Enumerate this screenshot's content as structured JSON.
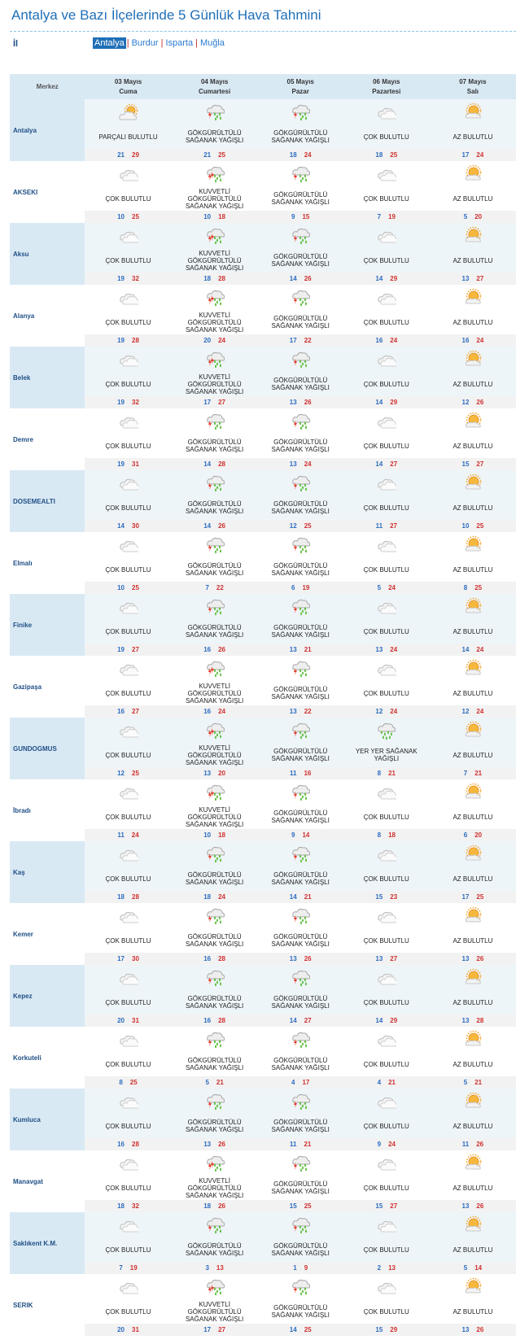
{
  "page": {
    "title": "Antalya ve Bazı İlçelerinde 5 Günlük Hava Tahmini",
    "il_label": "İl",
    "provinces": [
      "Antalya",
      "Burdur",
      "Isparta",
      "Muğla"
    ],
    "selected_province": "Antalya",
    "separator": "|"
  },
  "table": {
    "merkez_header": "Merkez",
    "days": [
      {
        "date": "03 Mayıs",
        "weekday": "Cuma"
      },
      {
        "date": "04 Mayıs",
        "weekday": "Cumartesi"
      },
      {
        "date": "05 Mayıs",
        "weekday": "Pazar"
      },
      {
        "date": "06 Mayıs",
        "weekday": "Pazartesi"
      },
      {
        "date": "07 Mayıs",
        "weekday": "Salı"
      }
    ]
  },
  "conditions": {
    "PB": {
      "label": "PARÇALI BULUTLU",
      "icon": "partly-cloudy-icon"
    },
    "CB": {
      "label": "ÇOK BULUTLU",
      "icon": "cloudy-icon"
    },
    "AB": {
      "label": "AZ BULUTLU",
      "icon": "mostly-sunny-icon"
    },
    "GSY": {
      "label": "GÖKGÜRÜLTÜLÜ SAĞANAK YAĞIŞLI",
      "icon": "thunderstorm-icon"
    },
    "KGSY": {
      "label": "KUVVETLİ GÖKGÜRÜLTÜLÜ SAĞANAK YAĞIŞLI",
      "icon": "heavy-thunderstorm-icon"
    },
    "YYSY": {
      "label": "YER YER SAĞANAK YAĞIŞLI",
      "icon": "rain-shower-icon"
    }
  },
  "cities": [
    {
      "name": "Antalya",
      "days": [
        {
          "c": "PB",
          "min": 21,
          "max": 29
        },
        {
          "c": "GSY",
          "min": 21,
          "max": 25
        },
        {
          "c": "GSY",
          "min": 18,
          "max": 24
        },
        {
          "c": "CB",
          "min": 18,
          "max": 25
        },
        {
          "c": "AB",
          "min": 17,
          "max": 24
        }
      ]
    },
    {
      "name": "AKSEKI",
      "days": [
        {
          "c": "CB",
          "min": 10,
          "max": 25
        },
        {
          "c": "KGSY",
          "min": 10,
          "max": 18
        },
        {
          "c": "GSY",
          "min": 9,
          "max": 15
        },
        {
          "c": "CB",
          "min": 7,
          "max": 19
        },
        {
          "c": "AB",
          "min": 5,
          "max": 20
        }
      ]
    },
    {
      "name": "Aksu",
      "days": [
        {
          "c": "CB",
          "min": 19,
          "max": 32
        },
        {
          "c": "KGSY",
          "min": 18,
          "max": 28
        },
        {
          "c": "GSY",
          "min": 14,
          "max": 26
        },
        {
          "c": "CB",
          "min": 14,
          "max": 29
        },
        {
          "c": "AB",
          "min": 13,
          "max": 27
        }
      ]
    },
    {
      "name": "Alanya",
      "days": [
        {
          "c": "CB",
          "min": 19,
          "max": 28
        },
        {
          "c": "KGSY",
          "min": 20,
          "max": 24
        },
        {
          "c": "GSY",
          "min": 17,
          "max": 22
        },
        {
          "c": "CB",
          "min": 16,
          "max": 24
        },
        {
          "c": "AB",
          "min": 16,
          "max": 24
        }
      ]
    },
    {
      "name": "Belek",
      "days": [
        {
          "c": "CB",
          "min": 19,
          "max": 32
        },
        {
          "c": "KGSY",
          "min": 17,
          "max": 27
        },
        {
          "c": "GSY",
          "min": 13,
          "max": 26
        },
        {
          "c": "CB",
          "min": 14,
          "max": 29
        },
        {
          "c": "AB",
          "min": 12,
          "max": 26
        }
      ]
    },
    {
      "name": "Demre",
      "days": [
        {
          "c": "CB",
          "min": 19,
          "max": 31
        },
        {
          "c": "GSY",
          "min": 14,
          "max": 28
        },
        {
          "c": "GSY",
          "min": 13,
          "max": 24
        },
        {
          "c": "CB",
          "min": 14,
          "max": 27
        },
        {
          "c": "AB",
          "min": 15,
          "max": 27
        }
      ]
    },
    {
      "name": "DOSEMEALTI",
      "days": [
        {
          "c": "CB",
          "min": 14,
          "max": 30
        },
        {
          "c": "GSY",
          "min": 14,
          "max": 26
        },
        {
          "c": "GSY",
          "min": 12,
          "max": 25
        },
        {
          "c": "CB",
          "min": 11,
          "max": 27
        },
        {
          "c": "AB",
          "min": 10,
          "max": 25
        }
      ]
    },
    {
      "name": "Elmalı",
      "days": [
        {
          "c": "CB",
          "min": 10,
          "max": 25
        },
        {
          "c": "GSY",
          "min": 7,
          "max": 22
        },
        {
          "c": "GSY",
          "min": 6,
          "max": 19
        },
        {
          "c": "CB",
          "min": 5,
          "max": 24
        },
        {
          "c": "AB",
          "min": 8,
          "max": 25
        }
      ]
    },
    {
      "name": "Finike",
      "days": [
        {
          "c": "CB",
          "min": 19,
          "max": 27
        },
        {
          "c": "GSY",
          "min": 16,
          "max": 26
        },
        {
          "c": "GSY",
          "min": 13,
          "max": 21
        },
        {
          "c": "CB",
          "min": 13,
          "max": 24
        },
        {
          "c": "AB",
          "min": 14,
          "max": 24
        }
      ]
    },
    {
      "name": "Gazipaşa",
      "days": [
        {
          "c": "CB",
          "min": 16,
          "max": 27
        },
        {
          "c": "KGSY",
          "min": 16,
          "max": 24
        },
        {
          "c": "GSY",
          "min": 13,
          "max": 22
        },
        {
          "c": "CB",
          "min": 12,
          "max": 24
        },
        {
          "c": "AB",
          "min": 12,
          "max": 24
        }
      ]
    },
    {
      "name": "GUNDOGMUS",
      "days": [
        {
          "c": "CB",
          "min": 12,
          "max": 25
        },
        {
          "c": "KGSY",
          "min": 13,
          "max": 20
        },
        {
          "c": "GSY",
          "min": 11,
          "max": 16
        },
        {
          "c": "YYSY",
          "min": 8,
          "max": 21
        },
        {
          "c": "AB",
          "min": 7,
          "max": 21
        }
      ]
    },
    {
      "name": "İbradı",
      "days": [
        {
          "c": "CB",
          "min": 11,
          "max": 24
        },
        {
          "c": "KGSY",
          "min": 10,
          "max": 18
        },
        {
          "c": "GSY",
          "min": 9,
          "max": 14
        },
        {
          "c": "CB",
          "min": 8,
          "max": 18
        },
        {
          "c": "AB",
          "min": 6,
          "max": 20
        }
      ]
    },
    {
      "name": "Kaş",
      "days": [
        {
          "c": "CB",
          "min": 18,
          "max": 28
        },
        {
          "c": "GSY",
          "min": 18,
          "max": 24
        },
        {
          "c": "GSY",
          "min": 14,
          "max": 21
        },
        {
          "c": "CB",
          "min": 15,
          "max": 23
        },
        {
          "c": "AB",
          "min": 17,
          "max": 25
        }
      ]
    },
    {
      "name": "Kemer",
      "days": [
        {
          "c": "CB",
          "min": 17,
          "max": 30
        },
        {
          "c": "GSY",
          "min": 16,
          "max": 28
        },
        {
          "c": "GSY",
          "min": 13,
          "max": 26
        },
        {
          "c": "CB",
          "min": 13,
          "max": 27
        },
        {
          "c": "AB",
          "min": 13,
          "max": 26
        }
      ]
    },
    {
      "name": "Kepez",
      "days": [
        {
          "c": "CB",
          "min": 20,
          "max": 31
        },
        {
          "c": "GSY",
          "min": 16,
          "max": 28
        },
        {
          "c": "GSY",
          "min": 14,
          "max": 27
        },
        {
          "c": "CB",
          "min": 14,
          "max": 29
        },
        {
          "c": "AB",
          "min": 13,
          "max": 28
        }
      ]
    },
    {
      "name": "Korkuteli",
      "days": [
        {
          "c": "CB",
          "min": 8,
          "max": 25
        },
        {
          "c": "GSY",
          "min": 5,
          "max": 21
        },
        {
          "c": "GSY",
          "min": 4,
          "max": 17
        },
        {
          "c": "CB",
          "min": 4,
          "max": 21
        },
        {
          "c": "AB",
          "min": 5,
          "max": 21
        }
      ]
    },
    {
      "name": "Kumluca",
      "days": [
        {
          "c": "CB",
          "min": 16,
          "max": 28
        },
        {
          "c": "GSY",
          "min": 13,
          "max": 26
        },
        {
          "c": "GSY",
          "min": 11,
          "max": 21
        },
        {
          "c": "CB",
          "min": 9,
          "max": 24
        },
        {
          "c": "AB",
          "min": 11,
          "max": 26
        }
      ]
    },
    {
      "name": "Manavgat",
      "days": [
        {
          "c": "CB",
          "min": 18,
          "max": 32
        },
        {
          "c": "KGSY",
          "min": 18,
          "max": 26
        },
        {
          "c": "GSY",
          "min": 15,
          "max": 25
        },
        {
          "c": "CB",
          "min": 15,
          "max": 27
        },
        {
          "c": "AB",
          "min": 13,
          "max": 26
        }
      ]
    },
    {
      "name": "Saklıkent K.M.",
      "days": [
        {
          "c": "CB",
          "min": 7,
          "max": 19
        },
        {
          "c": "GSY",
          "min": 3,
          "max": 13
        },
        {
          "c": "GSY",
          "min": 1,
          "max": 9
        },
        {
          "c": "CB",
          "min": 2,
          "max": 13
        },
        {
          "c": "AB",
          "min": 5,
          "max": 14
        }
      ]
    },
    {
      "name": "SERIK",
      "days": [
        {
          "c": "CB",
          "min": 20,
          "max": 31
        },
        {
          "c": "KGSY",
          "min": 17,
          "max": 27
        },
        {
          "c": "GSY",
          "min": 14,
          "max": 25
        },
        {
          "c": "CB",
          "min": 15,
          "max": 29
        },
        {
          "c": "AB",
          "min": 13,
          "max": 26
        }
      ]
    }
  ]
}
